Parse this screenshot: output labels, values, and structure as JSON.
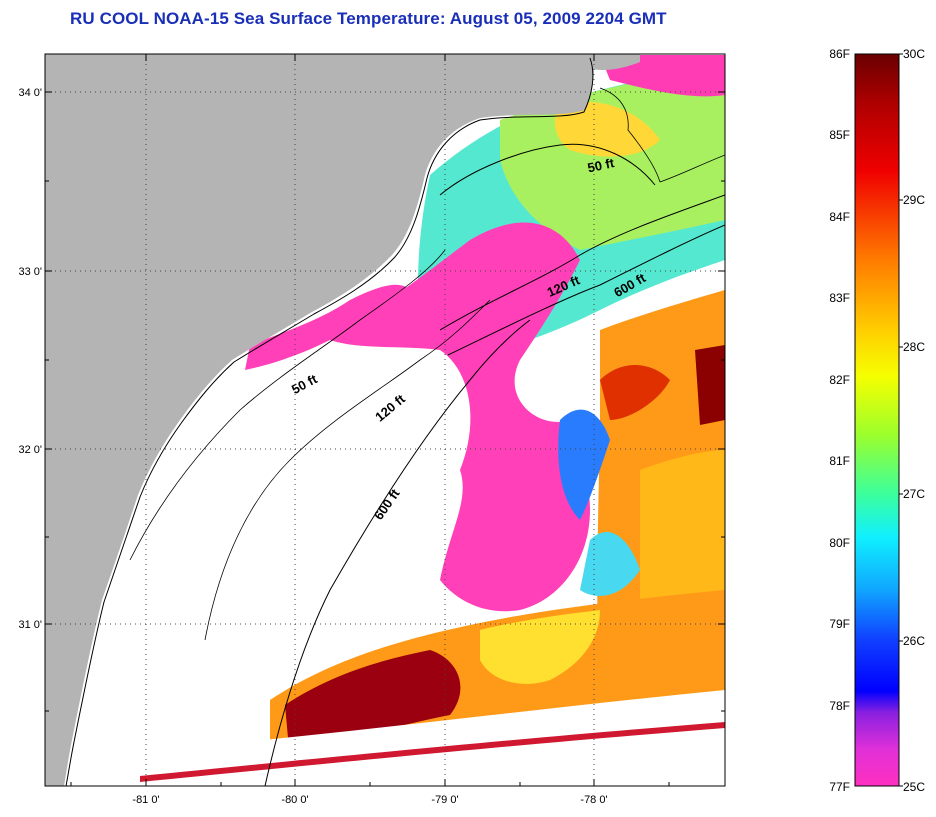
{
  "title": "RU COOL  NOAA-15  Sea Surface Temperature:  August 05, 2009 2204 GMT",
  "map": {
    "lat_labels": [
      "34 0'",
      "33 0'",
      "32 0'",
      "31 0'"
    ],
    "lon_labels": [
      "-81 0'",
      "-80 0'",
      "-79 0'",
      "-78 0'"
    ],
    "contours": [
      {
        "label": "50 ft"
      },
      {
        "label": "120 ft"
      },
      {
        "label": "600 ft"
      },
      {
        "label": "50 ft"
      },
      {
        "label": "120 ft"
      },
      {
        "label": "600 ft"
      }
    ],
    "colors": {
      "land": "#b4b4b4",
      "no_data": "#ffffff",
      "warm": "#8b0000",
      "orange": "#ff8c00",
      "yellow": "#ffe600",
      "green": "#9ef05a",
      "cyan": "#37e6f0",
      "blue": "#2050ff",
      "pink": "#ff3cb4"
    }
  },
  "colorbar": {
    "fahrenheit_labels": [
      "86F",
      "85F",
      "84F",
      "83F",
      "82F",
      "81F",
      "80F",
      "79F",
      "78F",
      "77F"
    ],
    "celsius_labels": [
      "30C",
      "29C",
      "28C",
      "27C",
      "26C",
      "25C"
    ],
    "range_f": [
      77,
      86
    ],
    "range_c": [
      25,
      30
    ]
  }
}
